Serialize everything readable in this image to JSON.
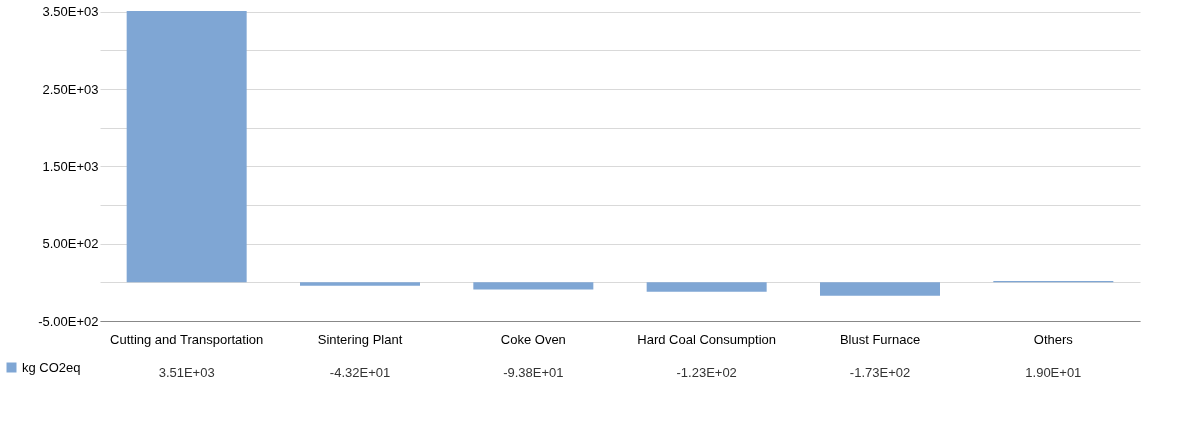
{
  "chart_data": {
    "type": "bar",
    "categories": [
      "Cutting and Transportation",
      "Sintering Plant",
      "Coke Oven",
      "Hard Coal Consumption",
      "Blust Furnace",
      "Others"
    ],
    "series": [
      {
        "name": "kg CO2eq",
        "color": "#7fa6d4",
        "values": [
          3510,
          -43.2,
          -93.8,
          -123,
          -173,
          19.0
        ],
        "value_labels": [
          "3.51E+03",
          "-4.32E+01",
          "-9.38E+01",
          "-1.23E+02",
          "-1.73E+02",
          "1.90E+01"
        ]
      }
    ],
    "ylim": [
      -500,
      3510
    ],
    "yticks": [
      {
        "value": -500,
        "label": "-5.00E+02"
      },
      {
        "value": 0,
        "label": null
      },
      {
        "value": 500,
        "label": "5.00E+02"
      },
      {
        "value": 1000,
        "label": null
      },
      {
        "value": 1500,
        "label": "1.50E+03"
      },
      {
        "value": 2000,
        "label": null
      },
      {
        "value": 2500,
        "label": "2.50E+03"
      },
      {
        "value": 3000,
        "label": null
      },
      {
        "value": 3500,
        "label": "3.50E+03"
      }
    ],
    "grid": "y",
    "legend": "bottom left"
  }
}
